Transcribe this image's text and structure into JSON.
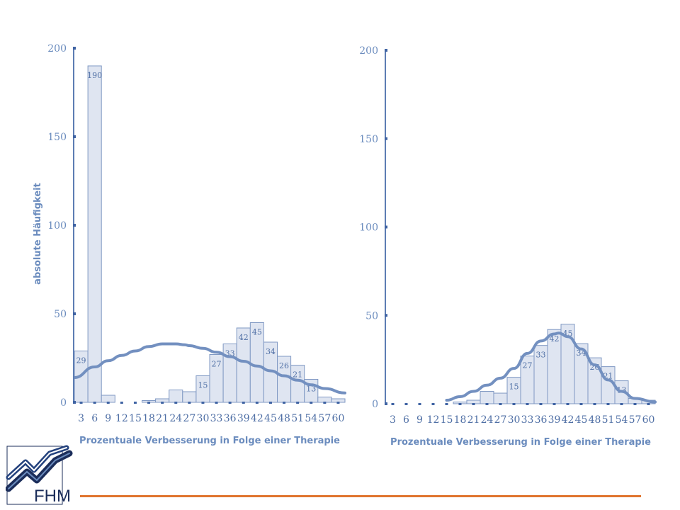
{
  "logo": {
    "text": "FHM"
  },
  "colors": {
    "bar_fill": "#dfe5f1",
    "bar_stroke": "#7f98c3",
    "curve": "#7390c0",
    "axis": "#5d7db3",
    "text": "#6b8cbe",
    "footer_line": "#e0752e"
  },
  "chart_data": [
    {
      "type": "bar",
      "xlabel": "Prozentuale Verbesserung in Folge einer Therapie",
      "ylabel": "absolute Häufigkeit",
      "ylim": [
        0,
        200
      ],
      "yticks": [
        0,
        50,
        100,
        150,
        200
      ],
      "x_ticks": [
        "3",
        "6",
        "9",
        "12",
        "15",
        "18",
        "21",
        "24",
        "27",
        "30",
        "33",
        "36",
        "39",
        "42",
        "45",
        "48",
        "51",
        "54",
        "57",
        "60"
      ],
      "categories": [
        "3",
        "6",
        "9",
        "12",
        "15",
        "18",
        "21",
        "24",
        "27",
        "30",
        "33",
        "36",
        "39",
        "42",
        "45",
        "48",
        "51",
        "54",
        "57",
        "60"
      ],
      "values": [
        29,
        190,
        4,
        0,
        0,
        1,
        2,
        7,
        6,
        15,
        27,
        33,
        42,
        45,
        34,
        26,
        21,
        13,
        3,
        2
      ],
      "bar_labels": [
        "29",
        "190",
        "",
        "",
        "",
        "",
        "",
        "",
        "",
        "15",
        "27",
        "33",
        "42",
        "45",
        "34",
        "26",
        "21",
        "13",
        "",
        ""
      ],
      "curve": {
        "x": [
          1.5,
          6,
          9,
          12,
          15,
          18,
          21,
          24,
          26,
          27,
          30,
          33,
          36,
          39,
          42,
          45,
          48,
          51,
          54,
          57,
          61.5
        ],
        "y": [
          14,
          20,
          23.5,
          26.5,
          29,
          31.5,
          33,
          33,
          32.5,
          32,
          30.5,
          28.3,
          25.8,
          23.2,
          20.5,
          17.8,
          15,
          12.5,
          9.9,
          7.8,
          5.3
        ]
      }
    },
    {
      "type": "bar",
      "xlabel": "Prozentuale Verbesserung in Folge einer Therapie",
      "ylim": [
        0,
        200
      ],
      "yticks": [
        0,
        50,
        100,
        150,
        200
      ],
      "x_ticks": [
        "3",
        "6",
        "9",
        "12",
        "15",
        "18",
        "21",
        "24",
        "27",
        "30",
        "33",
        "36",
        "39",
        "42",
        "45",
        "48",
        "51",
        "54",
        "57",
        "60"
      ],
      "categories": [
        "3",
        "6",
        "9",
        "12",
        "15",
        "18",
        "21",
        "24",
        "27",
        "30",
        "33",
        "36",
        "39",
        "42",
        "45",
        "48",
        "51",
        "54",
        "57",
        "60"
      ],
      "values": [
        0,
        0,
        0,
        0,
        0,
        1,
        2,
        7,
        6,
        15,
        27,
        33,
        42,
        45,
        34,
        26,
        21,
        13,
        3,
        2
      ],
      "bar_labels": [
        "",
        "",
        "",
        "",
        "",
        "",
        "",
        "",
        "",
        "15",
        "27",
        "33",
        "42",
        "45",
        "34",
        "26",
        "21",
        "13",
        "",
        ""
      ],
      "curve": {
        "x": [
          15,
          18,
          21,
          24,
          27,
          30,
          33,
          36,
          39,
          40,
          42,
          45,
          48,
          51,
          54,
          57,
          61.5
        ],
        "y": [
          2,
          4,
          7,
          10.5,
          14.5,
          20,
          28.5,
          35.5,
          39.5,
          40,
          38,
          31,
          22,
          13.5,
          7,
          3,
          1
        ]
      }
    }
  ]
}
